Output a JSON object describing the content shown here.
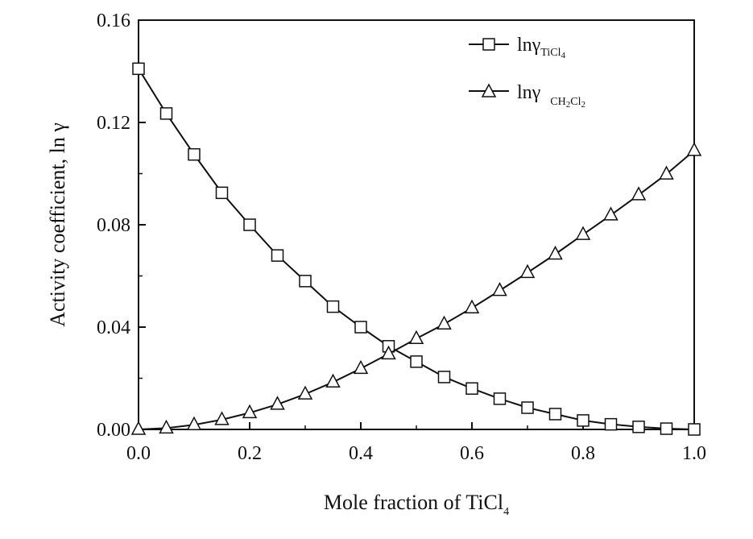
{
  "chart_data": {
    "type": "line",
    "xlabel": {
      "main": "Mole fraction of TiCl",
      "sub": "4"
    },
    "ylabel": "Activity coefficient, ln γ",
    "xlim": [
      0.0,
      1.0
    ],
    "ylim": [
      0.0,
      0.16
    ],
    "xticks": [
      0.0,
      0.2,
      0.4,
      0.6,
      0.8,
      1.0
    ],
    "xtick_labels": [
      "0.0",
      "0.2",
      "0.4",
      "0.6",
      "0.8",
      "1.0"
    ],
    "yticks": [
      0.0,
      0.04,
      0.08,
      0.12,
      0.16
    ],
    "ytick_labels": [
      "0.00",
      "0.04",
      "0.08",
      "0.12",
      "0.16"
    ],
    "x": [
      0.0,
      0.05,
      0.1,
      0.15,
      0.2,
      0.25,
      0.3,
      0.35,
      0.4,
      0.45,
      0.5,
      0.55,
      0.6,
      0.65,
      0.7,
      0.75,
      0.8,
      0.85,
      0.9,
      0.95,
      1.0
    ],
    "legend_position": "top-right",
    "grid": false,
    "series": [
      {
        "legend": {
          "main": "lnγ",
          "sub": "TiCl",
          "sub2": "4"
        },
        "marker": "square",
        "color": "#111111",
        "values": [
          0.141,
          0.1235,
          0.1075,
          0.0925,
          0.08,
          0.068,
          0.058,
          0.048,
          0.04,
          0.0325,
          0.0265,
          0.0205,
          0.016,
          0.012,
          0.0085,
          0.006,
          0.0035,
          0.002,
          0.001,
          0.0003,
          0.0
        ]
      },
      {
        "legend": {
          "main": "lnγ",
          "sub": "CH",
          "sub2": "2",
          "sub3": "Cl",
          "sub4": "2"
        },
        "marker": "triangle",
        "color": "#111111",
        "values": [
          0.0,
          0.0005,
          0.0018,
          0.0038,
          0.0065,
          0.0098,
          0.0138,
          0.0185,
          0.0238,
          0.0295,
          0.0355,
          0.0412,
          0.0475,
          0.0543,
          0.0613,
          0.0685,
          0.0762,
          0.0838,
          0.0917,
          0.0998,
          0.109
        ]
      }
    ]
  }
}
